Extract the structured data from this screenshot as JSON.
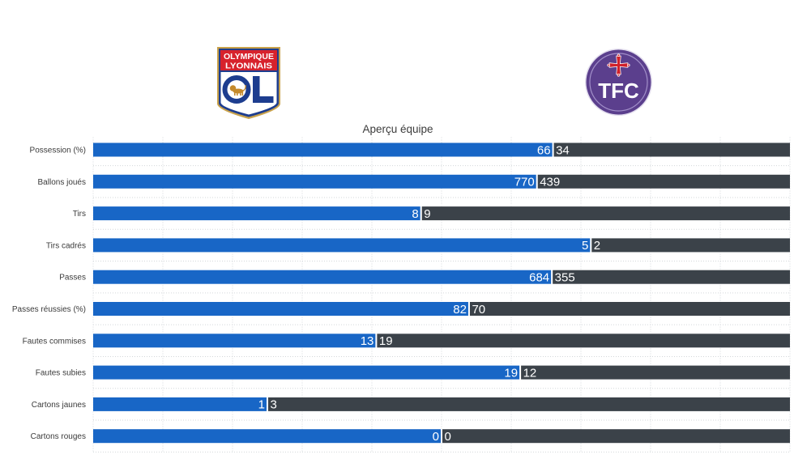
{
  "logos": {
    "home": {
      "icon": "olympique-lyonnais-logo",
      "top_line_1": "OLYMPIQUE",
      "top_line_2": "LYONNAIS",
      "monogram": "OL",
      "colors": {
        "red": "#d7222c",
        "blue": "#1d3d8f",
        "gold": "#c9a24b"
      }
    },
    "away": {
      "icon": "toulouse-fc-logo",
      "monogram": "TFC",
      "colors": {
        "purple": "#5b3f8d",
        "cross": "#d0202a"
      }
    }
  },
  "chart_data": {
    "type": "bar",
    "orientation": "horizontal",
    "stacked": "percent",
    "title": "Aperçu équipe",
    "xlabel": "",
    "ylabel": "",
    "categories": [
      "Possession (%)",
      "Ballons joués",
      "Tirs",
      "Tirs cadrés",
      "Passes",
      "Passes réussies (%)",
      "Fautes commises",
      "Fautes subies",
      "Cartons jaunes",
      "Cartons rouges"
    ],
    "series": [
      {
        "values": [
          66,
          770,
          8,
          5,
          684,
          82,
          13,
          19,
          1,
          0
        ],
        "color": "#1866c6"
      },
      {
        "values": [
          34,
          439,
          9,
          2,
          355,
          70,
          19,
          12,
          3,
          0
        ],
        "color": "#3b4249"
      }
    ],
    "grid": true,
    "legend": "none"
  }
}
